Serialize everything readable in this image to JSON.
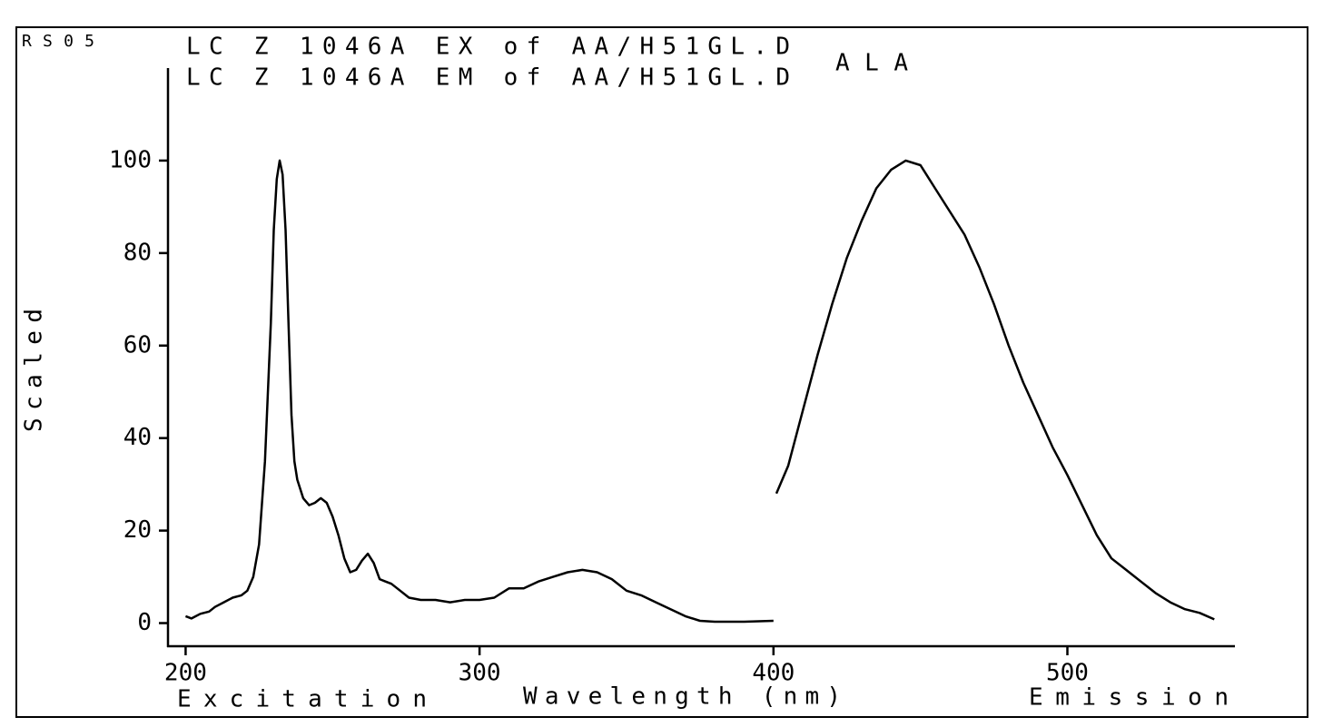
{
  "chart_data": {
    "type": "line",
    "corner_label": "RS05",
    "annotation": "ALA",
    "ylabel": "Scaled",
    "xlabel": "Wavelength (nm)",
    "xlabel_left": "Excitation",
    "xlabel_right": "Emission",
    "xlim": [
      194,
      557
    ],
    "ylim": [
      -5,
      120
    ],
    "xticks": [
      200,
      300,
      400,
      500
    ],
    "yticks": [
      0,
      20,
      40,
      60,
      80,
      100
    ],
    "series": [
      {
        "name": "LC Z 1046A EX of AA/H51GL.D",
        "color": "#000000",
        "x": [
          200,
          202,
          205,
          208,
          210,
          213,
          216,
          219,
          221,
          223,
          225,
          227,
          229,
          230,
          231,
          232,
          233,
          234,
          235,
          236,
          237,
          238,
          240,
          242,
          244,
          246,
          248,
          250,
          252,
          254,
          256,
          258,
          260,
          262,
          264,
          266,
          268,
          270,
          273,
          276,
          280,
          285,
          290,
          295,
          300,
          305,
          310,
          315,
          320,
          325,
          330,
          335,
          340,
          345,
          350,
          355,
          360,
          365,
          370,
          375,
          380,
          390,
          400
        ],
        "values": [
          1.5,
          1,
          2,
          2.5,
          3.5,
          4.5,
          5.5,
          6,
          7,
          10,
          17,
          35,
          65,
          85,
          96,
          100,
          97,
          85,
          65,
          45,
          35,
          31,
          27,
          25.5,
          26,
          27,
          26,
          23,
          19,
          14,
          11,
          11.5,
          13.5,
          15,
          13,
          9.5,
          9,
          8.5,
          7,
          5.5,
          5,
          5,
          4.5,
          5,
          5,
          5.5,
          7.5,
          7.5,
          9,
          10,
          11,
          11.5,
          11,
          9.5,
          7,
          6,
          4.5,
          3,
          1.5,
          0.5,
          0.3,
          0.3,
          0.5
        ]
      },
      {
        "name": "LC Z 1046A EM of AA/H51GL.D",
        "color": "#000000",
        "x": [
          401,
          405,
          410,
          415,
          420,
          425,
          430,
          435,
          440,
          445,
          450,
          455,
          460,
          465,
          470,
          475,
          480,
          485,
          490,
          495,
          500,
          505,
          510,
          515,
          520,
          525,
          530,
          535,
          540,
          545,
          550
        ],
        "values": [
          28,
          34,
          46,
          58,
          69,
          79,
          87,
          94,
          98,
          100,
          99,
          94,
          89,
          84,
          77,
          69,
          60,
          52,
          45,
          38,
          32,
          25.5,
          19,
          14,
          11.5,
          9,
          6.5,
          4.5,
          3,
          2.2,
          0.8
        ]
      }
    ]
  }
}
